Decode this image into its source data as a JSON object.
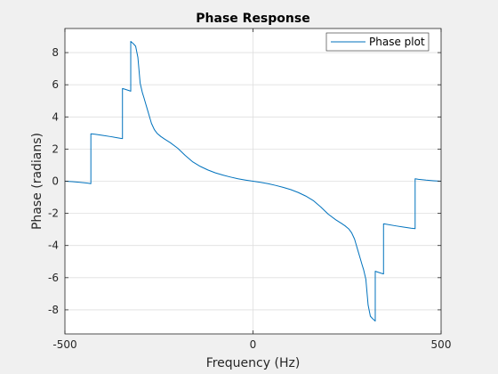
{
  "chart_data": {
    "type": "line",
    "title": "Phase Response",
    "xlabel": "Frequency (Hz)",
    "ylabel": "Phase (radians)",
    "xlim": [
      -500,
      500
    ],
    "ylim": [
      -9.5,
      9.5
    ],
    "xticks": [
      -500,
      0,
      500
    ],
    "yticks": [
      -8,
      -6,
      -4,
      -2,
      0,
      2,
      4,
      6,
      8
    ],
    "grid": true,
    "legend": {
      "position": "top-right",
      "entries": [
        "Phase plot"
      ]
    },
    "series": [
      {
        "name": "Phase plot",
        "color": "#0072bd",
        "x": [
          -500,
          -480,
          -460,
          -440,
          -431,
          -431,
          -420,
          -400,
          -380,
          -350,
          -347,
          -347,
          -340,
          -325,
          -325,
          -318,
          -312,
          -306,
          -300,
          -294,
          -290,
          -285,
          -280,
          -275,
          -270,
          -262,
          -255,
          -245,
          -235,
          -220,
          -200,
          -180,
          -160,
          -140,
          -120,
          -100,
          -80,
          -60,
          -40,
          -20,
          0,
          20,
          40,
          60,
          80,
          100,
          120,
          140,
          160,
          180,
          200,
          220,
          235,
          245,
          255,
          262,
          270,
          275,
          280,
          285,
          290,
          294,
          300,
          306,
          312,
          318,
          325,
          325,
          340,
          347,
          347,
          350,
          380,
          400,
          420,
          431,
          431,
          440,
          460,
          480,
          500
        ],
        "y": [
          0,
          -0.03,
          -0.07,
          -0.12,
          -0.15,
          2.95,
          2.92,
          2.85,
          2.78,
          2.66,
          2.65,
          5.77,
          5.72,
          5.6,
          8.7,
          8.55,
          8.4,
          7.7,
          6.1,
          5.5,
          5.2,
          4.8,
          4.4,
          4.0,
          3.6,
          3.2,
          2.98,
          2.78,
          2.62,
          2.4,
          2.05,
          1.6,
          1.2,
          0.92,
          0.7,
          0.52,
          0.38,
          0.26,
          0.15,
          0.07,
          0,
          -0.07,
          -0.15,
          -0.26,
          -0.38,
          -0.52,
          -0.7,
          -0.92,
          -1.2,
          -1.6,
          -2.05,
          -2.4,
          -2.62,
          -2.78,
          -2.98,
          -3.2,
          -3.6,
          -4.0,
          -4.4,
          -4.8,
          -5.2,
          -5.5,
          -6.1,
          -7.7,
          -8.4,
          -8.55,
          -8.7,
          -5.6,
          -5.72,
          -5.77,
          -2.65,
          -2.66,
          -2.78,
          -2.85,
          -2.92,
          -2.95,
          0.15,
          0.12,
          0.07,
          0.03,
          0
        ]
      }
    ]
  }
}
